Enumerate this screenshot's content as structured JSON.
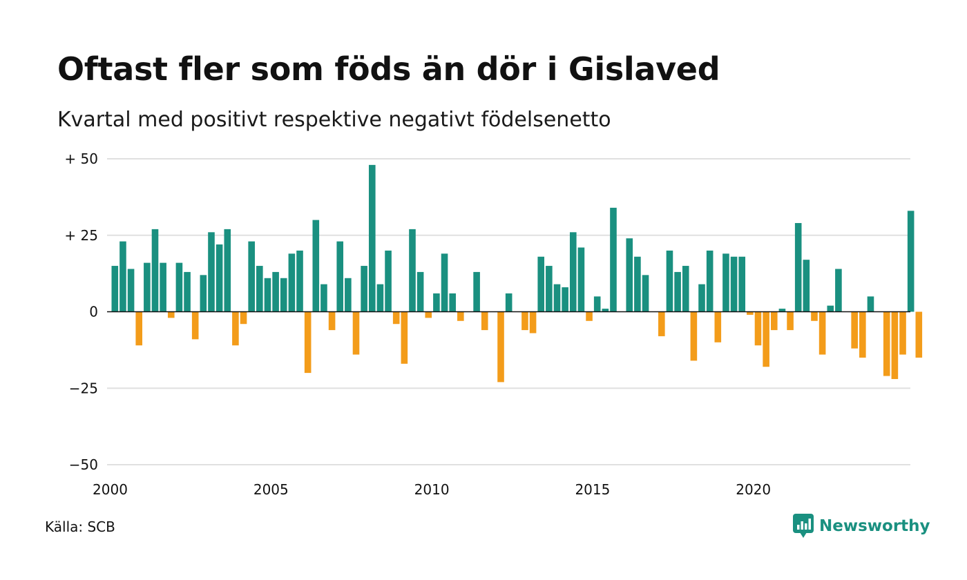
{
  "title": "Oftast fler som föds än dör i Gislaved",
  "subtitle": "Kvartal med positivt respektive negativt födelsenetto",
  "source": "Källa: SCB",
  "brand": {
    "name": "Newsworthy",
    "icon": "newsworthy-logo-icon",
    "color": "#1a9080"
  },
  "chart_data": {
    "type": "bar",
    "title": "Oftast fler som föds än dör i Gislaved",
    "subtitle": "Kvartal med positivt respektive negativt födelsenetto",
    "xlabel": "",
    "ylabel": "",
    "ylim": [
      -50,
      50
    ],
    "yticks": [
      50,
      25,
      0,
      -25,
      -50
    ],
    "ytick_labels": [
      "+ 50",
      "+ 25",
      "0",
      "−25",
      "−50"
    ],
    "xticks": [
      "2000",
      "2005",
      "2010",
      "2015",
      "2020"
    ],
    "grid": true,
    "legend": "none",
    "colors": {
      "positive": "#1a9080",
      "negative": "#f39c1a"
    },
    "categories": [
      "2000 K1",
      "2000 K2",
      "2000 K3",
      "2000 K4",
      "2001 K1",
      "2001 K2",
      "2001 K3",
      "2001 K4",
      "2002 K1",
      "2002 K2",
      "2002 K3",
      "2002 K4",
      "2003 K1",
      "2003 K2",
      "2003 K3",
      "2003 K4",
      "2004 K1",
      "2004 K2",
      "2004 K3",
      "2004 K4",
      "2005 K1",
      "2005 K2",
      "2005 K3",
      "2005 K4",
      "2006 K1",
      "2006 K2",
      "2006 K3",
      "2006 K4",
      "2007 K1",
      "2007 K2",
      "2007 K3",
      "2007 K4",
      "2008 K1",
      "2008 K2",
      "2008 K3",
      "2008 K4",
      "2009 K1",
      "2009 K2",
      "2009 K3",
      "2009 K4",
      "2010 K1",
      "2010 K2",
      "2010 K3",
      "2010 K4",
      "2011 K1",
      "2011 K2",
      "2011 K3",
      "2011 K4",
      "2012 K1",
      "2012 K2",
      "2012 K3",
      "2012 K4",
      "2013 K1",
      "2013 K2",
      "2013 K3",
      "2013 K4",
      "2014 K1",
      "2014 K2",
      "2014 K3",
      "2014 K4",
      "2015 K1",
      "2015 K2",
      "2015 K3",
      "2015 K4",
      "2016 K1",
      "2016 K2",
      "2016 K3",
      "2016 K4",
      "2017 K1",
      "2017 K2",
      "2017 K3",
      "2017 K4",
      "2018 K1",
      "2018 K2",
      "2018 K3",
      "2018 K4",
      "2019 K1",
      "2019 K2",
      "2019 K3",
      "2019 K4",
      "2020 K1",
      "2020 K2",
      "2020 K3",
      "2020 K4",
      "2021 K1",
      "2021 K2",
      "2021 K3",
      "2021 K4",
      "2022 K1",
      "2022 K2",
      "2022 K3",
      "2022 K4",
      "2023 K1",
      "2023 K2",
      "2023 K3",
      "2023 K4",
      "2024 K1",
      "2024 K2",
      "2024 K3",
      "2024 K4",
      "2025 K1"
    ],
    "values": [
      15,
      23,
      14,
      -11,
      16,
      27,
      16,
      -2,
      16,
      13,
      -9,
      12,
      26,
      22,
      27,
      -11,
      -4,
      23,
      15,
      11,
      13,
      11,
      19,
      20,
      -20,
      30,
      9,
      -6,
      23,
      11,
      -14,
      15,
      48,
      9,
      20,
      -4,
      -17,
      27,
      13,
      -2,
      6,
      19,
      6,
      -3,
      0,
      13,
      -6,
      0,
      -23,
      6,
      0,
      -6,
      -7,
      18,
      15,
      9,
      8,
      26,
      21,
      -3,
      5,
      1,
      34,
      0,
      24,
      18,
      12,
      0,
      -8,
      20,
      13,
      15,
      -16,
      9,
      20,
      -10,
      19,
      18,
      18,
      -1,
      -11,
      -18,
      -6,
      1,
      -6,
      29,
      17,
      -3,
      -14,
      2,
      14,
      0,
      -12,
      -15,
      5,
      0,
      -21,
      -22,
      -14,
      33,
      -15
    ]
  }
}
